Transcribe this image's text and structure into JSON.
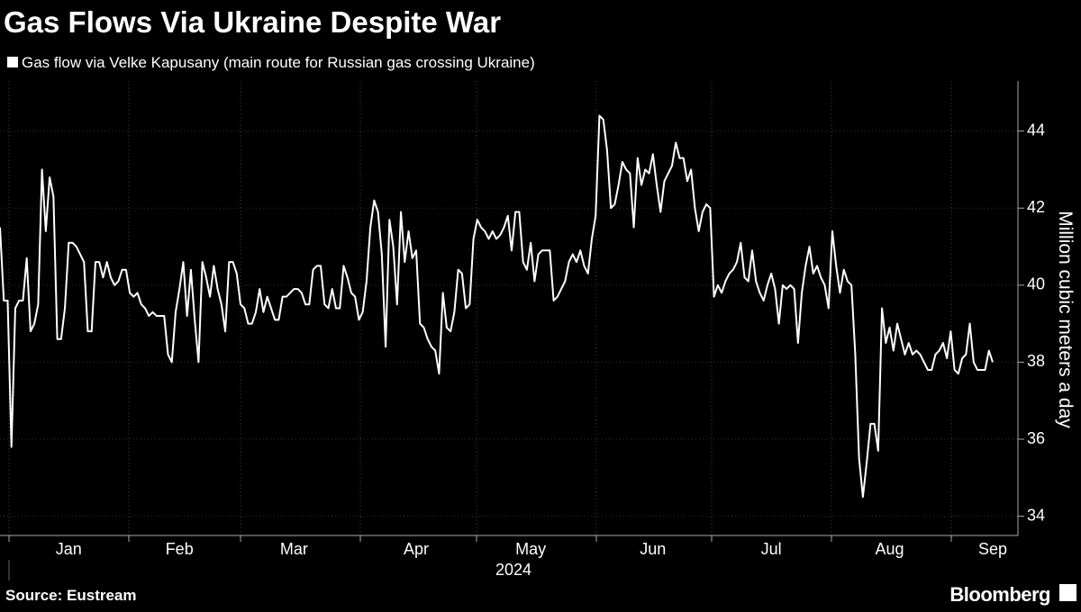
{
  "chart_data": {
    "type": "line",
    "title": "Gas Flows Via Ukraine Despite War",
    "source": "Source: Eustream",
    "brand": "Bloomberg",
    "xlabel": "2024",
    "ylabel": "Million cubic meters a day",
    "ylim": [
      33.5,
      45.3
    ],
    "yticks": [
      34,
      36,
      38,
      40,
      42,
      44
    ],
    "categories": [
      null,
      null,
      null,
      null,
      null,
      null,
      null,
      null,
      null,
      null,
      null,
      null,
      null,
      null,
      null,
      null,
      null,
      null,
      "Jan",
      null,
      null,
      null,
      null,
      null,
      null,
      null,
      null,
      null,
      null,
      null,
      null,
      null,
      null,
      null,
      null,
      null,
      null,
      null,
      null,
      null,
      null,
      null,
      null,
      null,
      null,
      null,
      null,
      "Feb",
      null,
      null,
      null,
      null,
      null,
      null,
      null,
      null,
      null,
      null,
      null,
      null,
      null,
      null,
      null,
      null,
      null,
      null,
      null,
      null,
      null,
      null,
      null,
      null,
      null,
      null,
      null,
      null,
      null,
      "Mar",
      null,
      null,
      null,
      null,
      null,
      null,
      null,
      null,
      null,
      null,
      null,
      null,
      null,
      null,
      null,
      null,
      null,
      null,
      null,
      null,
      null,
      null,
      null,
      null,
      null,
      null,
      null,
      null,
      null,
      null,
      null,
      "Apr",
      null,
      null,
      null,
      null,
      null,
      null,
      null,
      null,
      null,
      null,
      null,
      null,
      null,
      null,
      null,
      null,
      null,
      null,
      null,
      null,
      null,
      null,
      null,
      null,
      null,
      null,
      null,
      null,
      null,
      "May",
      null,
      null,
      null,
      null,
      null,
      null,
      null,
      null,
      null,
      null,
      null,
      null,
      null,
      null,
      null,
      null,
      null,
      null,
      null,
      null,
      null,
      null,
      null,
      null,
      null,
      null,
      null,
      null,
      null,
      null,
      null,
      "Jun",
      null,
      null,
      null,
      null,
      null,
      null,
      null,
      null,
      null,
      null,
      null,
      null,
      null,
      null,
      null,
      null,
      null,
      null,
      null,
      null,
      null,
      null,
      null,
      null,
      null,
      null,
      null,
      null,
      null,
      null,
      "Jul",
      null,
      null,
      null,
      null,
      null,
      null,
      null,
      null,
      null,
      null,
      null,
      null,
      null,
      null,
      null,
      null,
      null,
      null,
      null,
      null,
      null,
      null,
      null,
      null,
      null,
      null,
      null,
      null,
      null,
      null,
      "Aug",
      null,
      null,
      null,
      null,
      null,
      null,
      null,
      null,
      null,
      null,
      null,
      null,
      null,
      null,
      null,
      null,
      null,
      null,
      null,
      null,
      null,
      null,
      null,
      null,
      null,
      null,
      "Sep"
    ],
    "series": [
      {
        "name": "Gas flow via Velke Kapusany (main route for Russian gas crossing Ukraine)",
        "color": "#ffffff",
        "values": [
          41.5,
          39.6,
          39.6,
          35.8,
          39.4,
          39.6,
          39.6,
          40.7,
          38.8,
          39.0,
          39.5,
          43.0,
          41.4,
          42.8,
          42.3,
          38.6,
          38.6,
          39.4,
          41.1,
          41.1,
          41.0,
          40.8,
          40.6,
          38.8,
          38.8,
          40.6,
          40.6,
          40.2,
          40.6,
          40.2,
          40.0,
          40.1,
          40.4,
          40.4,
          39.8,
          39.7,
          39.8,
          39.5,
          39.4,
          39.2,
          39.3,
          39.2,
          39.2,
          39.2,
          38.2,
          38.0,
          39.3,
          39.9,
          40.6,
          39.2,
          40.4,
          39.1,
          38.0,
          40.6,
          40.2,
          39.7,
          40.5,
          39.9,
          39.5,
          38.8,
          40.6,
          40.6,
          40.3,
          39.5,
          39.4,
          39.0,
          39.0,
          39.3,
          39.9,
          39.3,
          39.7,
          39.4,
          39.1,
          39.1,
          39.7,
          39.7,
          39.8,
          39.9,
          39.9,
          39.8,
          39.5,
          39.5,
          40.4,
          40.5,
          40.5,
          39.5,
          39.4,
          39.9,
          39.4,
          39.4,
          40.5,
          40.2,
          39.8,
          39.7,
          39.1,
          39.3,
          40.1,
          41.5,
          42.2,
          41.9,
          40.8,
          38.4,
          41.7,
          41.0,
          39.5,
          41.9,
          40.6,
          41.4,
          40.7,
          40.9,
          39.0,
          38.9,
          38.6,
          38.4,
          38.3,
          37.7,
          39.8,
          38.9,
          38.8,
          39.3,
          40.4,
          40.3,
          39.4,
          39.5,
          41.2,
          41.7,
          41.5,
          41.4,
          41.2,
          41.4,
          41.2,
          41.3,
          41.5,
          41.8,
          40.9,
          41.9,
          41.9,
          40.6,
          40.4,
          41.1,
          40.1,
          40.8,
          40.9,
          40.9,
          40.9,
          39.6,
          39.7,
          39.9,
          40.1,
          40.6,
          40.8,
          40.6,
          40.9,
          40.5,
          40.3,
          41.2,
          41.8,
          44.4,
          44.3,
          43.5,
          42.0,
          42.1,
          42.6,
          43.2,
          43.0,
          42.9,
          41.5,
          43.3,
          42.6,
          43.0,
          42.9,
          43.4,
          42.6,
          41.9,
          42.7,
          42.9,
          43.1,
          43.7,
          43.3,
          43.3,
          42.7,
          43.0,
          42.0,
          41.4,
          41.9,
          42.1,
          42.0,
          39.7,
          40.0,
          39.8,
          40.1,
          40.3,
          40.4,
          40.6,
          41.1,
          40.2,
          40.1,
          40.9,
          40.1,
          39.8,
          39.6,
          40.0,
          40.3,
          39.9,
          39.0,
          40.0,
          39.9,
          40.0,
          39.9,
          38.5,
          39.8,
          40.5,
          41.0,
          40.3,
          40.5,
          40.2,
          40.0,
          39.4,
          41.4,
          40.5,
          39.8,
          40.4,
          40.1,
          40.0,
          38.2,
          35.5,
          34.5,
          35.4,
          36.4,
          36.4,
          35.7,
          39.4,
          38.5,
          38.9,
          38.3,
          39.0,
          38.6,
          38.2,
          38.5,
          38.2,
          38.3,
          38.2,
          38.0,
          37.8,
          37.8,
          38.2,
          38.3,
          38.5,
          38.1,
          38.8,
          37.8,
          37.7,
          38.1,
          38.2,
          39.0,
          38.0,
          37.8,
          37.8,
          37.8,
          38.3,
          38.0
        ]
      }
    ]
  }
}
